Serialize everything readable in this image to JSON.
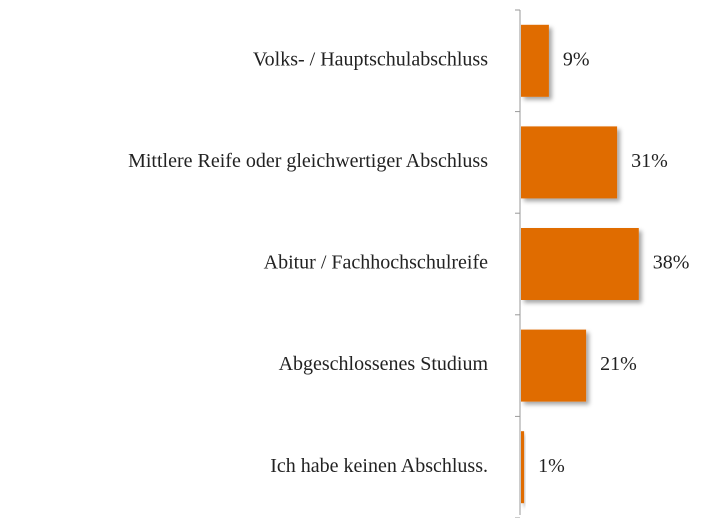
{
  "chart_data": {
    "type": "hbar",
    "categories": [
      "Volks- / Hauptschulabschluss",
      "Mittlere Reife oder gleichwertiger Abschluss",
      "Abitur / Fachhochschulreife",
      "Abgeschlossenes Studium",
      "Ich habe keinen Abschluss."
    ],
    "values": [
      9,
      31,
      38,
      21,
      1
    ],
    "value_labels": [
      "9%",
      "31%",
      "38%",
      "21%",
      "1%"
    ],
    "color": "#e06c00"
  }
}
